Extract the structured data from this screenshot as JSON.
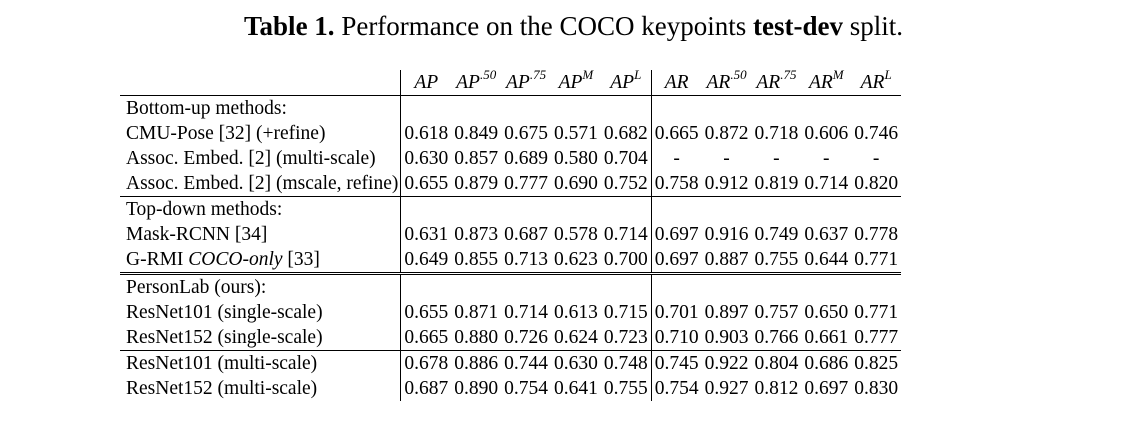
{
  "caption": {
    "label": "Table 1.",
    "text_before": "Performance on the COCO keypoints",
    "emphasis": "test-dev",
    "text_after": "split."
  },
  "headers": [
    {
      "base": "AP",
      "sup": ""
    },
    {
      "base": "AP",
      "sup": ".50"
    },
    {
      "base": "AP",
      "sup": ".75"
    },
    {
      "base": "AP",
      "sup": "M"
    },
    {
      "base": "AP",
      "sup": "L"
    },
    {
      "base": "AR",
      "sup": ""
    },
    {
      "base": "AR",
      "sup": ".50"
    },
    {
      "base": "AR",
      "sup": ".75"
    },
    {
      "base": "AR",
      "sup": "M"
    },
    {
      "base": "AR",
      "sup": "L"
    }
  ],
  "sections": [
    {
      "title": "Bottom-up methods:",
      "rows": [
        {
          "name": "CMU-Pose [32] (+refine)",
          "values": [
            "0.618",
            "0.849",
            "0.675",
            "0.571",
            "0.682",
            "0.665",
            "0.872",
            "0.718",
            "0.606",
            "0.746"
          ]
        },
        {
          "name": "Assoc. Embed. [2] (multi-scale)",
          "values": [
            "0.630",
            "0.857",
            "0.689",
            "0.580",
            "0.704",
            "-",
            "-",
            "-",
            "-",
            "-"
          ]
        },
        {
          "name": "Assoc. Embed. [2] (mscale, refine)",
          "values": [
            "0.655",
            "0.879",
            "0.777",
            "0.690",
            "0.752",
            "0.758",
            "0.912",
            "0.819",
            "0.714",
            "0.820"
          ]
        }
      ]
    },
    {
      "title": "Top-down methods:",
      "rows": [
        {
          "name": "Mask-RCNN [34]",
          "values": [
            "0.631",
            "0.873",
            "0.687",
            "0.578",
            "0.714",
            "0.697",
            "0.916",
            "0.749",
            "0.637",
            "0.778"
          ]
        },
        {
          "name_prefix": "G-RMI ",
          "name_italic": "COCO-only",
          "name_suffix": " [33]",
          "values": [
            "0.649",
            "0.855",
            "0.713",
            "0.623",
            "0.700",
            "0.697",
            "0.887",
            "0.755",
            "0.644",
            "0.771"
          ]
        }
      ]
    },
    {
      "title": "PersonLab (ours):",
      "rows": [
        {
          "name": "ResNet101 (single-scale)",
          "values": [
            "0.655",
            "0.871",
            "0.714",
            "0.613",
            "0.715",
            "0.701",
            "0.897",
            "0.757",
            "0.650",
            "0.771"
          ]
        },
        {
          "name": "ResNet152 (single-scale)",
          "values": [
            "0.665",
            "0.880",
            "0.726",
            "0.624",
            "0.723",
            "0.710",
            "0.903",
            "0.766",
            "0.661",
            "0.777"
          ],
          "bold_first": true
        }
      ]
    },
    {
      "title": "",
      "rows": [
        {
          "name": "ResNet101 (multi-scale)",
          "values": [
            "0.678",
            "0.886",
            "0.744",
            "0.630",
            "0.748",
            "0.745",
            "0.922",
            "0.804",
            "0.686",
            "0.825"
          ]
        },
        {
          "name": "ResNet152 (multi-scale)",
          "values": [
            "0.687",
            "0.890",
            "0.754",
            "0.641",
            "0.755",
            "0.754",
            "0.927",
            "0.812",
            "0.697",
            "0.830"
          ],
          "bold_first": true
        }
      ]
    }
  ]
}
